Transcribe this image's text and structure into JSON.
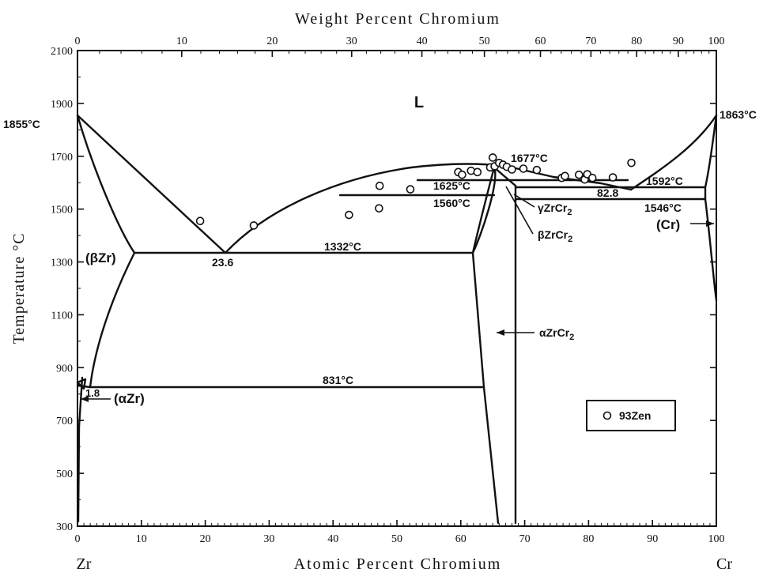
{
  "top_axis": {
    "title": "Weight Percent Chromium",
    "ticks": [
      "0",
      "10",
      "20",
      "30",
      "40",
      "50",
      "60",
      "70",
      "80",
      "90",
      "100"
    ],
    "values": [
      0,
      10,
      20,
      30,
      40,
      50,
      60,
      70,
      80,
      90,
      100
    ]
  },
  "bottom_axis": {
    "title": "Atomic Percent Chromium",
    "ticks": [
      "0",
      "10",
      "20",
      "30",
      "40",
      "50",
      "60",
      "70",
      "80",
      "90",
      "100"
    ],
    "left_element": "Zr",
    "right_element": "Cr"
  },
  "left_axis": {
    "title": "Temperature °C",
    "ticks": [
      "300",
      "500",
      "700",
      "900",
      "1100",
      "1300",
      "1500",
      "1700",
      "1900",
      "2100"
    ],
    "range": [
      300,
      2100
    ]
  },
  "labels": {
    "liquid": "L",
    "zr_melt": "1855°C",
    "cr_melt": "1863°C",
    "congruent": "1677°C",
    "eut1_temp": "1332°C",
    "eut1_comp": "23.6",
    "eut2_temp": "1592°C",
    "eut2_comp": "82.8",
    "per_1625": "1625°C",
    "per_1560": "1560°C",
    "cr_trans": "1546°C",
    "eutectoid": "831°C",
    "alpha_zr_comp": "1.8",
    "beta_zr": "(βZr)",
    "alpha_zr": "(αZr)",
    "cr_phase": "(Cr)",
    "gamma": "γZrCr",
    "beta_zrcr2": "βZrCr",
    "alpha_zrcr2": "αZrCr",
    "sub2": "2",
    "legend_label": "93Zen"
  },
  "experimental_points": [
    {
      "x": 19.2,
      "t": 1455
    },
    {
      "x": 27.6,
      "t": 1438
    },
    {
      "x": 42.5,
      "t": 1478
    },
    {
      "x": 47.2,
      "t": 1503
    },
    {
      "x": 47.3,
      "t": 1588
    },
    {
      "x": 52.1,
      "t": 1575
    },
    {
      "x": 59.6,
      "t": 1640
    },
    {
      "x": 60.2,
      "t": 1630
    },
    {
      "x": 61.6,
      "t": 1645
    },
    {
      "x": 62.6,
      "t": 1640
    },
    {
      "x": 64.6,
      "t": 1658
    },
    {
      "x": 65.3,
      "t": 1662
    },
    {
      "x": 65.0,
      "t": 1695
    },
    {
      "x": 66.0,
      "t": 1675
    },
    {
      "x": 66.6,
      "t": 1668
    },
    {
      "x": 67.2,
      "t": 1660
    },
    {
      "x": 68.0,
      "t": 1650
    },
    {
      "x": 69.8,
      "t": 1653
    },
    {
      "x": 71.9,
      "t": 1648
    },
    {
      "x": 75.8,
      "t": 1618
    },
    {
      "x": 76.3,
      "t": 1625
    },
    {
      "x": 78.5,
      "t": 1630
    },
    {
      "x": 79.4,
      "t": 1612
    },
    {
      "x": 79.8,
      "t": 1632
    },
    {
      "x": 80.6,
      "t": 1618
    },
    {
      "x": 83.8,
      "t": 1620
    },
    {
      "x": 86.7,
      "t": 1675
    }
  ]
}
